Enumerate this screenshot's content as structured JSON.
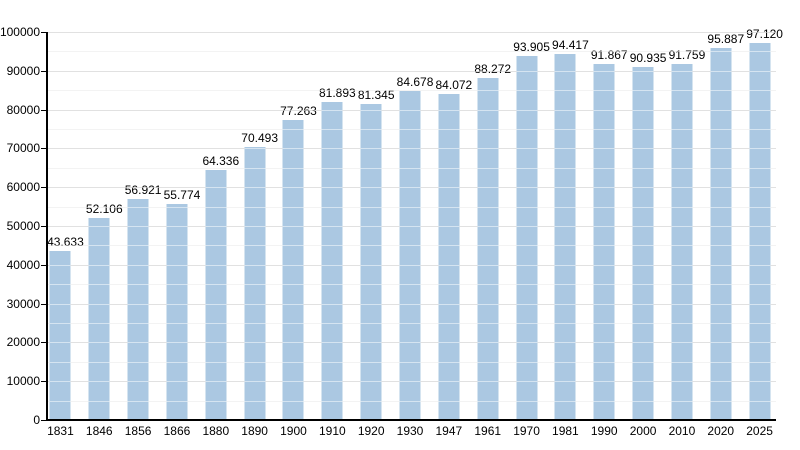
{
  "chart_data": {
    "type": "bar",
    "title": "",
    "categories": [
      "1831",
      "1846",
      "1856",
      "1866",
      "1880",
      "1890",
      "1900",
      "1910",
      "1920",
      "1930",
      "1947",
      "1961",
      "1970",
      "1981",
      "1990",
      "2000",
      "2010",
      "2020",
      "2025"
    ],
    "values": [
      43633,
      52106,
      56921,
      55774,
      64336,
      70493,
      77263,
      81893,
      81345,
      84678,
      84072,
      88272,
      93905,
      94417,
      91867,
      90935,
      91759,
      95887,
      97120
    ],
    "value_labels": [
      "43.633",
      "52.106",
      "56.921",
      "55.774",
      "64.336",
      "70.493",
      "77.263",
      "81.893",
      "81.345",
      "84.678",
      "84.072",
      "88.272",
      "93.905",
      "94.417",
      "91.867",
      "90.935",
      "91.759",
      "95.887",
      "97.120"
    ],
    "xlabel": "",
    "ylabel": "",
    "ylim": [
      0,
      100000
    ],
    "y_major_step": 10000,
    "y_minor_step": 5000,
    "y_tick_labels": [
      "0",
      "10000",
      "20000",
      "30000",
      "40000",
      "50000",
      "60000",
      "70000",
      "80000",
      "90000",
      "100000"
    ],
    "grid": true,
    "legend": "none",
    "colors": {
      "bar_fill": "#abc8e2",
      "major_gridline": "#c2c2c2",
      "minor_gridline": "#e6e6e6",
      "axis": "#000000",
      "text": "#000000"
    }
  }
}
